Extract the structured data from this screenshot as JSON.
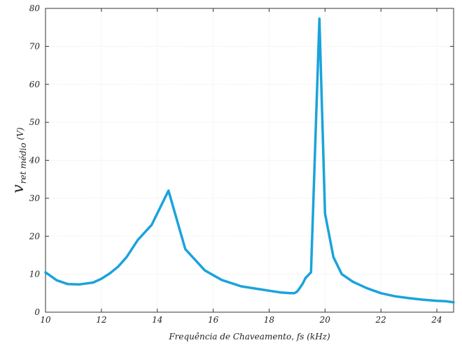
{
  "chart_data": {
    "type": "line",
    "xlabel": "Frequência de Chaveamento, fs (kHz)",
    "ylabel": "v",
    "ylabel_subscript": "ret médio",
    "ylabel_unit": "(V)",
    "xlim": [
      10,
      24.6
    ],
    "ylim": [
      0,
      80
    ],
    "xticks": [
      10,
      12,
      14,
      16,
      18,
      20,
      22,
      24
    ],
    "yticks": [
      0,
      10,
      20,
      30,
      40,
      50,
      60,
      70,
      80
    ],
    "grid": true,
    "line_color": "#1aa3dc",
    "series": [
      {
        "x": [
          10.0,
          10.4,
          10.8,
          11.2,
          11.7,
          12.0,
          12.3,
          12.6,
          12.9,
          13.3,
          13.8,
          14.4,
          15.0,
          15.7,
          16.3,
          17.0,
          17.7,
          18.4,
          18.75,
          18.85,
          18.9,
          19.0,
          19.1,
          19.2,
          19.3,
          19.5,
          19.8,
          20.0,
          20.3,
          20.6,
          21.0,
          21.5,
          22.0,
          22.5,
          23.0,
          23.5,
          24.0,
          24.3,
          24.6
        ],
        "y": [
          10.5,
          8.4,
          7.4,
          7.3,
          7.8,
          8.8,
          10.2,
          12.0,
          14.5,
          19.0,
          23.0,
          32.0,
          16.6,
          11.0,
          8.5,
          6.8,
          6.0,
          5.2,
          5.0,
          5.0,
          5.0,
          5.4,
          6.4,
          7.5,
          9.0,
          10.5,
          77.3,
          26.0,
          14.5,
          10.0,
          8.0,
          6.3,
          5.0,
          4.2,
          3.7,
          3.3,
          3.0,
          2.9,
          2.6
        ]
      }
    ]
  }
}
